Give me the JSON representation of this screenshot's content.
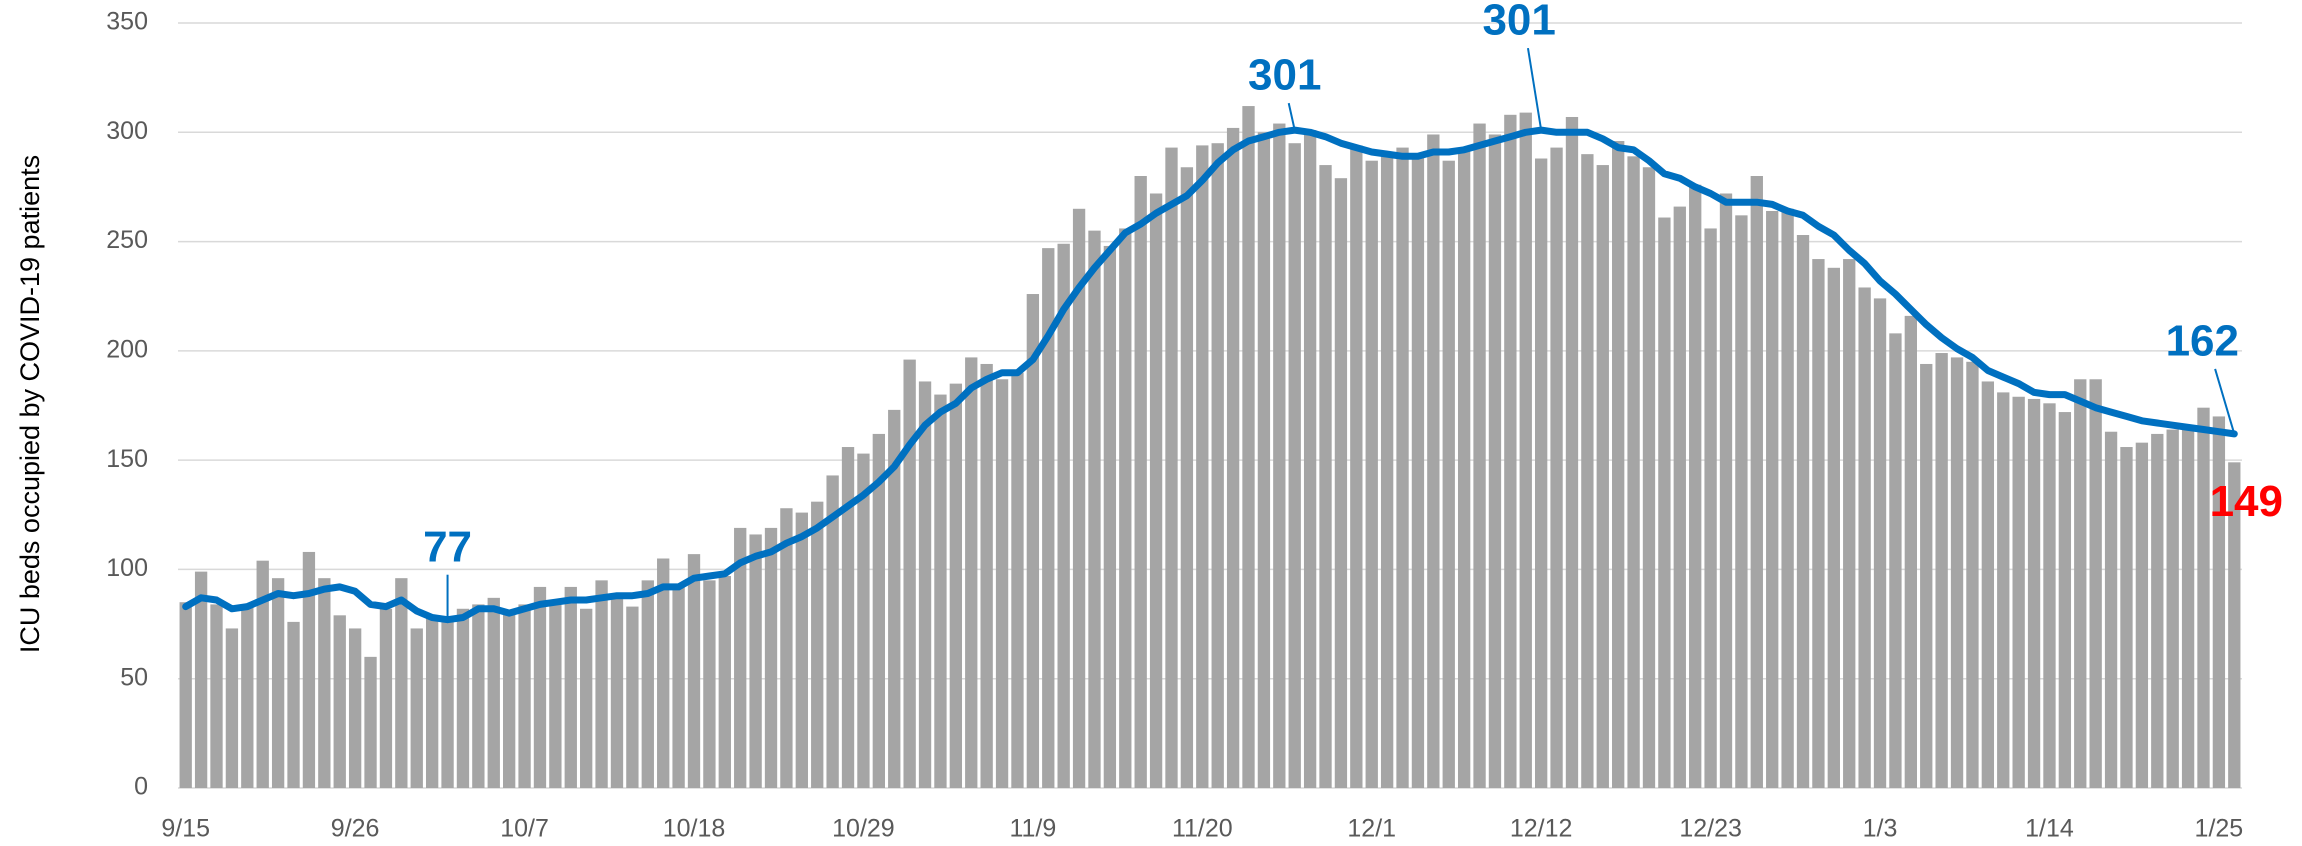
{
  "chart_data": {
    "type": "bar_line",
    "y_label": "ICU beds occupied by COVID-19 patients",
    "categories": [
      "9/15",
      null,
      null,
      null,
      null,
      null,
      null,
      null,
      null,
      null,
      null,
      "9/26",
      null,
      null,
      null,
      null,
      null,
      null,
      null,
      null,
      null,
      null,
      "10/7",
      null,
      null,
      null,
      null,
      null,
      null,
      null,
      null,
      null,
      null,
      "10/18",
      null,
      null,
      null,
      null,
      null,
      null,
      null,
      null,
      null,
      null,
      "10/29",
      null,
      null,
      null,
      null,
      null,
      null,
      null,
      null,
      null,
      null,
      "11/9",
      null,
      null,
      null,
      null,
      null,
      null,
      null,
      null,
      null,
      null,
      "11/20",
      null,
      null,
      null,
      null,
      null,
      null,
      null,
      null,
      null,
      null,
      "12/1",
      null,
      null,
      null,
      null,
      null,
      null,
      null,
      null,
      null,
      null,
      "12/12",
      null,
      null,
      null,
      null,
      null,
      null,
      null,
      null,
      null,
      null,
      "12/23",
      null,
      null,
      null,
      null,
      null,
      null,
      null,
      null,
      null,
      null,
      "1/3",
      null,
      null,
      null,
      null,
      null,
      null,
      null,
      null,
      null,
      null,
      "1/14",
      null,
      null,
      null,
      null,
      null,
      null,
      null,
      null,
      null,
      null,
      "1/25",
      null
    ],
    "series": [
      {
        "kind": "bar",
        "color": "#a5a5a5",
        "label_color": "#ff0000",
        "label_indices": [
          133
        ],
        "values": [
          85,
          99,
          84,
          73,
          84,
          104,
          96,
          76,
          108,
          96,
          79,
          73,
          60,
          82,
          96,
          73,
          78,
          77,
          82,
          84,
          87,
          80,
          84,
          92,
          85,
          92,
          82,
          95,
          87,
          83,
          95,
          105,
          92,
          107,
          95,
          97,
          119,
          116,
          119,
          128,
          126,
          131,
          143,
          156,
          153,
          162,
          173,
          196,
          186,
          180,
          185,
          197,
          194,
          187,
          190,
          226,
          247,
          249,
          265,
          255,
          248,
          256,
          280,
          272,
          293,
          284,
          294,
          295,
          302,
          312,
          300,
          304,
          295,
          301,
          285,
          279,
          294,
          287,
          290,
          293,
          290,
          299,
          287,
          292,
          304,
          299,
          308,
          309,
          288,
          293,
          307,
          290,
          285,
          296,
          289,
          284,
          261,
          266,
          276,
          256,
          272,
          262,
          280,
          264,
          265,
          253,
          242,
          238,
          242,
          229,
          224,
          208,
          216,
          194,
          199,
          197,
          195,
          186,
          181,
          179,
          178,
          176,
          172,
          187,
          187,
          163,
          156,
          158,
          162,
          164,
          165,
          174,
          170,
          149
        ]
      },
      {
        "kind": "line",
        "color": "#0070c0",
        "label_color": "#0070c0",
        "label_indices": [
          17,
          72,
          88,
          133
        ],
        "values": [
          83,
          87,
          86,
          82,
          83,
          86,
          89,
          88,
          89,
          91,
          92,
          90,
          84,
          83,
          86,
          81,
          78,
          77,
          78,
          82,
          82,
          80,
          82,
          84,
          85,
          86,
          86,
          87,
          88,
          88,
          89,
          92,
          92,
          96,
          97,
          98,
          103,
          106,
          108,
          112,
          115,
          119,
          124,
          129,
          134,
          140,
          147,
          157,
          166,
          172,
          176,
          183,
          187,
          190,
          190,
          196,
          207,
          219,
          229,
          238,
          246,
          254,
          258,
          263,
          267,
          271,
          278,
          286,
          292,
          296,
          298,
          300,
          301,
          300,
          298,
          295,
          293,
          291,
          290,
          289,
          289,
          291,
          291,
          292,
          294,
          296,
          298,
          300,
          301,
          300,
          300,
          300,
          297,
          293,
          292,
          287,
          281,
          279,
          275,
          272,
          268,
          268,
          268,
          267,
          264,
          262,
          257,
          253,
          246,
          240,
          232,
          226,
          219,
          212,
          206,
          201,
          197,
          191,
          188,
          185,
          181,
          180,
          180,
          177,
          174,
          172,
          170,
          168,
          167,
          166,
          165,
          164,
          163,
          162
        ]
      }
    ],
    "ylim": [
      0,
      350
    ],
    "yticks": [
      0,
      50,
      100,
      150,
      200,
      250,
      300,
      350
    ],
    "grid": true
  }
}
